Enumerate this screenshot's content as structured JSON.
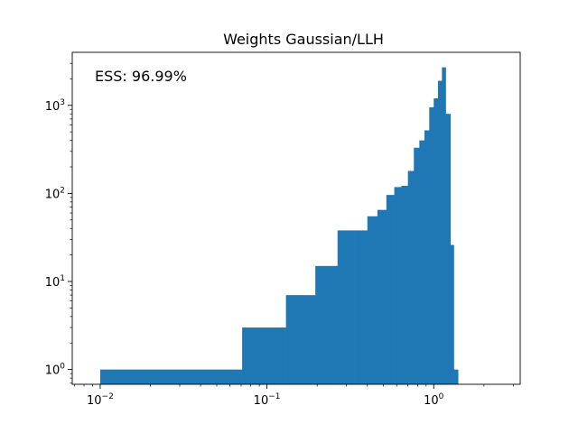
{
  "chart_data": {
    "type": "bar",
    "title": "Weights Gaussian/LLH",
    "annotation": "ESS: 96.99%",
    "xlabel": "",
    "ylabel": "",
    "x_scale": "log",
    "y_scale": "log",
    "xlim": [
      0.0068,
      3.3
    ],
    "ylim": [
      0.68,
      4000
    ],
    "grid": false,
    "color": "#1f77b4",
    "x_ticks": [
      {
        "value": 0.01,
        "base": "10",
        "exp": "−2"
      },
      {
        "value": 0.1,
        "base": "10",
        "exp": "−1"
      },
      {
        "value": 1,
        "base": "10",
        "exp": "0"
      }
    ],
    "y_ticks": [
      {
        "value": 1,
        "base": "10",
        "exp": "0"
      },
      {
        "value": 10,
        "base": "10",
        "exp": "1"
      },
      {
        "value": 100,
        "base": "10",
        "exp": "2"
      },
      {
        "value": 1000,
        "base": "10",
        "exp": "3"
      }
    ],
    "bins": [
      {
        "x0": 0.01,
        "x1": 0.071,
        "count": 1
      },
      {
        "x0": 0.071,
        "x1": 0.13,
        "count": 3
      },
      {
        "x0": 0.13,
        "x1": 0.195,
        "count": 7
      },
      {
        "x0": 0.195,
        "x1": 0.265,
        "count": 15
      },
      {
        "x0": 0.265,
        "x1": 0.335,
        "count": 38
      },
      {
        "x0": 0.335,
        "x1": 0.4,
        "count": 38
      },
      {
        "x0": 0.4,
        "x1": 0.46,
        "count": 55
      },
      {
        "x0": 0.46,
        "x1": 0.52,
        "count": 65
      },
      {
        "x0": 0.52,
        "x1": 0.58,
        "count": 96
      },
      {
        "x0": 0.58,
        "x1": 0.64,
        "count": 118
      },
      {
        "x0": 0.64,
        "x1": 0.7,
        "count": 122
      },
      {
        "x0": 0.7,
        "x1": 0.76,
        "count": 180
      },
      {
        "x0": 0.76,
        "x1": 0.82,
        "count": 330
      },
      {
        "x0": 0.82,
        "x1": 0.88,
        "count": 400
      },
      {
        "x0": 0.88,
        "x1": 0.94,
        "count": 520
      },
      {
        "x0": 0.94,
        "x1": 1.0,
        "count": 950
      },
      {
        "x0": 1.0,
        "x1": 1.06,
        "count": 1200
      },
      {
        "x0": 1.06,
        "x1": 1.12,
        "count": 1900
      },
      {
        "x0": 1.12,
        "x1": 1.18,
        "count": 2700
      },
      {
        "x0": 1.18,
        "x1": 1.26,
        "count": 800
      },
      {
        "x0": 1.26,
        "x1": 1.32,
        "count": 26
      },
      {
        "x0": 1.32,
        "x1": 1.4,
        "count": 1
      }
    ]
  }
}
